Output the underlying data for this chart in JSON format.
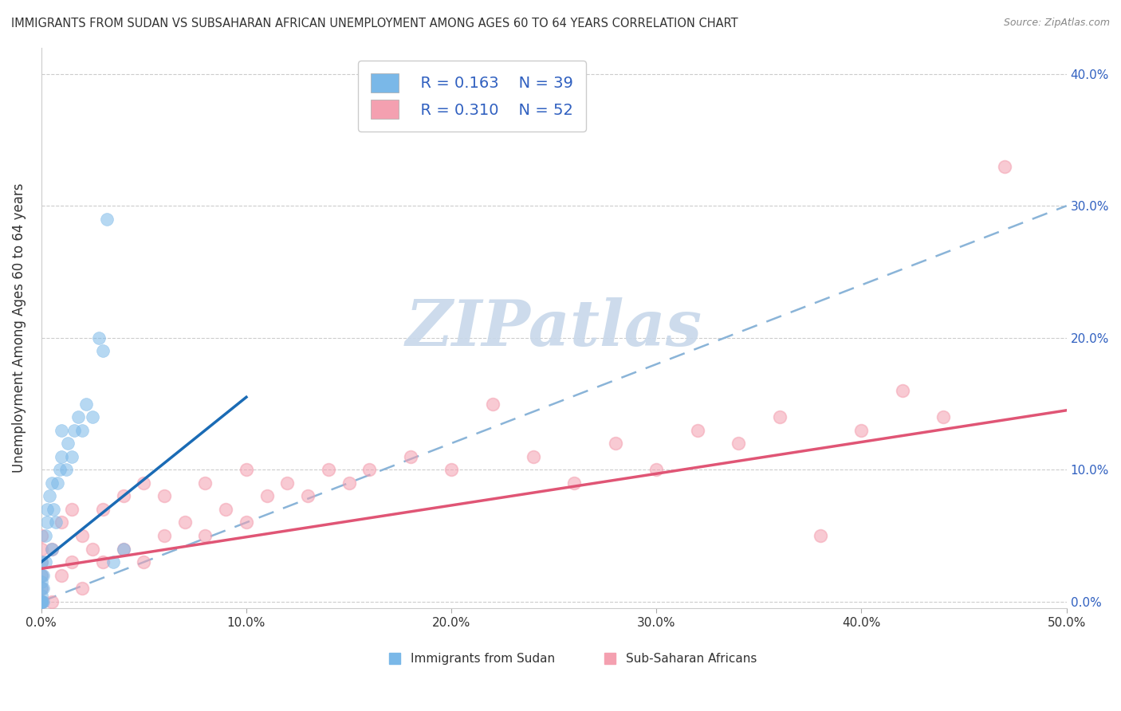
{
  "title": "IMMIGRANTS FROM SUDAN VS SUBSAHARAN AFRICAN UNEMPLOYMENT AMONG AGES 60 TO 64 YEARS CORRELATION CHART",
  "source": "Source: ZipAtlas.com",
  "ylabel": "Unemployment Among Ages 60 to 64 years",
  "xlim": [
    0,
    0.5
  ],
  "ylim": [
    -0.005,
    0.42
  ],
  "legend_r1": "R = 0.163",
  "legend_n1": "N = 39",
  "legend_r2": "R = 0.310",
  "legend_n2": "N = 52",
  "legend_label1": "Immigrants from Sudan",
  "legend_label2": "Sub-Saharan Africans",
  "blue_color": "#7ab8e8",
  "blue_line_color": "#1a6bb5",
  "pink_color": "#f4a0b0",
  "pink_line_color": "#e05575",
  "dashed_line_color": "#8ab4d8",
  "axis_label_color": "#3060c0",
  "watermark_color": "#c8d8ea",
  "sudan_x": [
    0.0,
    0.0,
    0.0,
    0.0,
    0.0,
    0.0,
    0.0,
    0.0,
    0.0,
    0.0,
    0.001,
    0.001,
    0.001,
    0.002,
    0.002,
    0.003,
    0.003,
    0.004,
    0.005,
    0.005,
    0.006,
    0.007,
    0.008,
    0.009,
    0.01,
    0.01,
    0.012,
    0.013,
    0.015,
    0.016,
    0.018,
    0.02,
    0.022,
    0.025,
    0.028,
    0.03,
    0.032,
    0.035,
    0.04
  ],
  "sudan_y": [
    0.0,
    0.0,
    0.0,
    0.0,
    0.0,
    0.005,
    0.01,
    0.015,
    0.02,
    0.03,
    0.0,
    0.01,
    0.02,
    0.03,
    0.05,
    0.06,
    0.07,
    0.08,
    0.04,
    0.09,
    0.07,
    0.06,
    0.09,
    0.1,
    0.11,
    0.13,
    0.1,
    0.12,
    0.11,
    0.13,
    0.14,
    0.13,
    0.15,
    0.14,
    0.2,
    0.19,
    0.29,
    0.03,
    0.04
  ],
  "subsaharan_x": [
    0.0,
    0.0,
    0.0,
    0.0,
    0.0,
    0.0,
    0.0,
    0.0,
    0.005,
    0.005,
    0.01,
    0.01,
    0.015,
    0.015,
    0.02,
    0.02,
    0.025,
    0.03,
    0.03,
    0.04,
    0.04,
    0.05,
    0.05,
    0.06,
    0.06,
    0.07,
    0.08,
    0.08,
    0.09,
    0.1,
    0.1,
    0.11,
    0.12,
    0.13,
    0.14,
    0.15,
    0.16,
    0.18,
    0.2,
    0.22,
    0.24,
    0.26,
    0.28,
    0.3,
    0.32,
    0.34,
    0.36,
    0.38,
    0.4,
    0.42,
    0.44,
    0.47
  ],
  "subsaharan_y": [
    0.0,
    0.0,
    0.0,
    0.01,
    0.02,
    0.03,
    0.04,
    0.05,
    0.0,
    0.04,
    0.02,
    0.06,
    0.03,
    0.07,
    0.01,
    0.05,
    0.04,
    0.03,
    0.07,
    0.04,
    0.08,
    0.03,
    0.09,
    0.05,
    0.08,
    0.06,
    0.05,
    0.09,
    0.07,
    0.06,
    0.1,
    0.08,
    0.09,
    0.08,
    0.1,
    0.09,
    0.1,
    0.11,
    0.1,
    0.15,
    0.11,
    0.09,
    0.12,
    0.1,
    0.13,
    0.12,
    0.14,
    0.05,
    0.13,
    0.16,
    0.14,
    0.33
  ],
  "blue_line_x": [
    0.0,
    0.1
  ],
  "blue_line_y": [
    0.03,
    0.155
  ],
  "pink_line_x": [
    0.0,
    0.5
  ],
  "pink_line_y": [
    0.025,
    0.145
  ],
  "dashed_line_x": [
    0.0,
    0.5
  ],
  "dashed_line_y": [
    0.0,
    0.3
  ],
  "yticks": [
    0.0,
    0.1,
    0.2,
    0.3,
    0.4
  ],
  "xticks": [
    0.0,
    0.1,
    0.2,
    0.3,
    0.4,
    0.5
  ]
}
